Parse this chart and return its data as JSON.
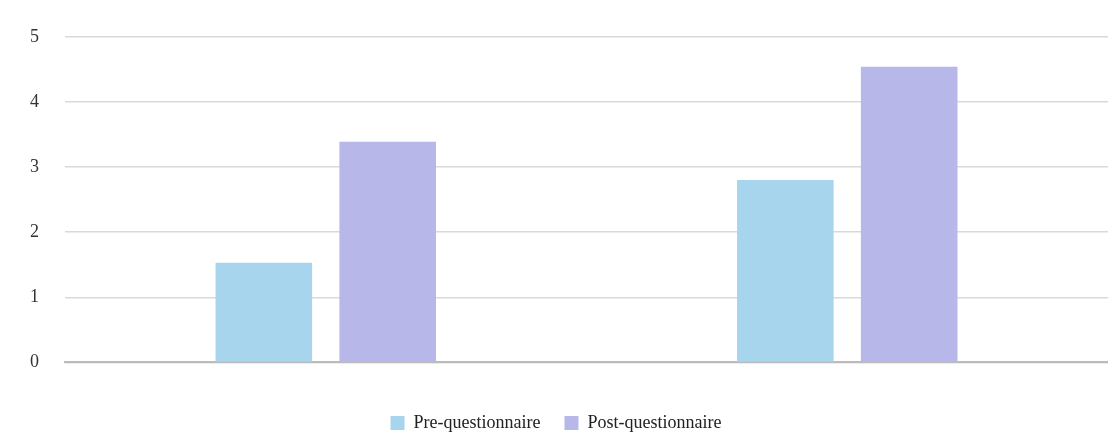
{
  "chart_data": {
    "type": "bar",
    "categories": [
      null,
      null
    ],
    "series": [
      {
        "name": "Pre-questionnaire",
        "color": "#a8d5ee",
        "values": [
          1.53,
          2.8
        ]
      },
      {
        "name": "Post-questionnaire",
        "color": "#b7b7ea",
        "values": [
          3.39,
          4.54
        ]
      }
    ],
    "ylim": [
      0,
      5
    ],
    "yticks": [
      0,
      1,
      2,
      3,
      4,
      5
    ],
    "grid": "y",
    "legend": "bottom"
  }
}
